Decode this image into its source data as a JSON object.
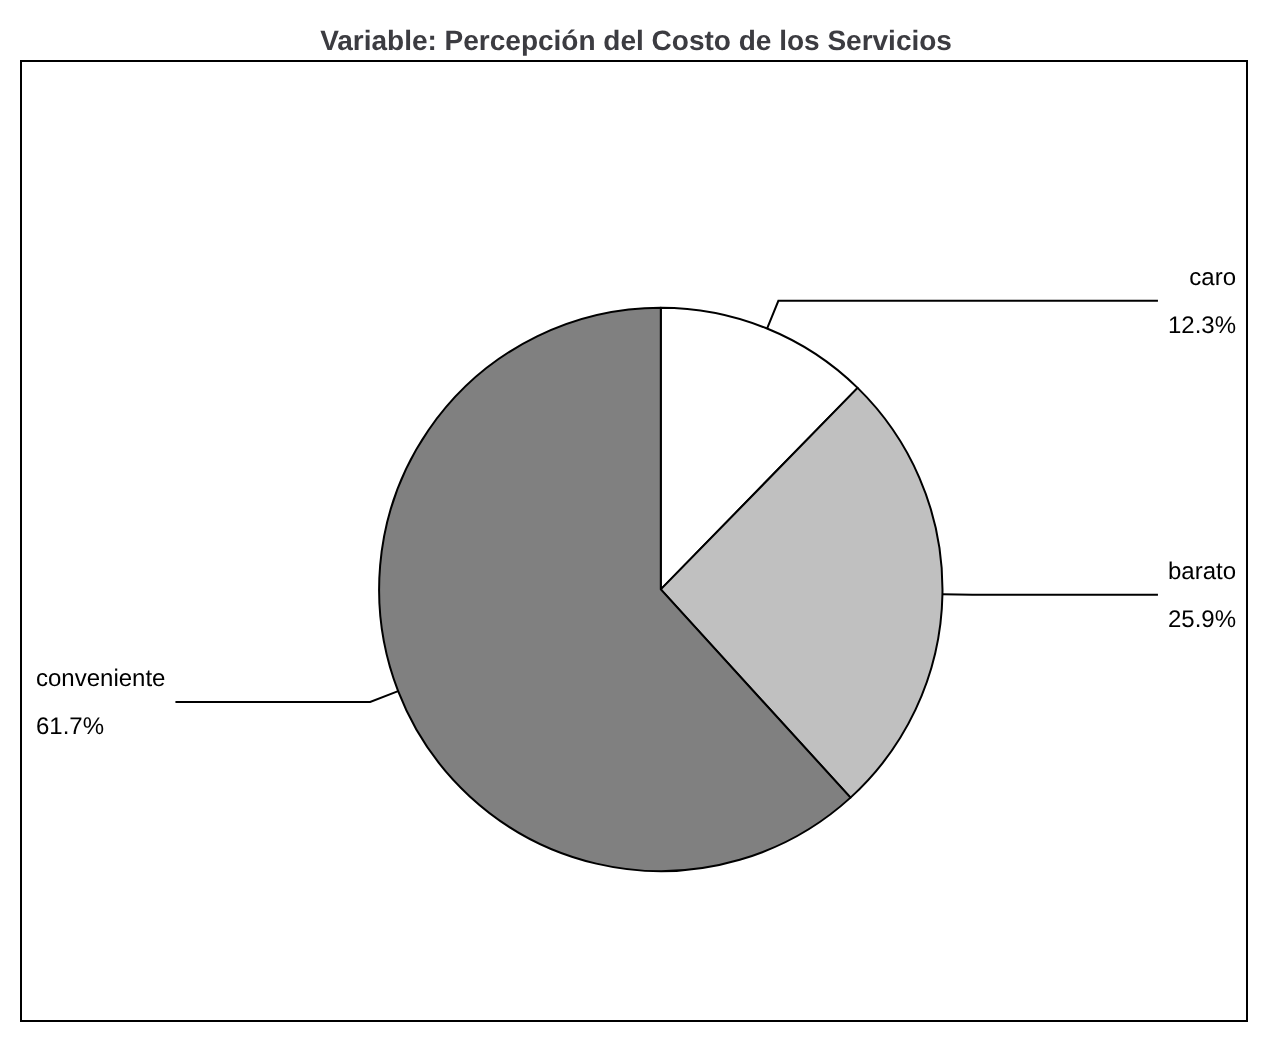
{
  "chart_data": {
    "type": "pie",
    "title": "Variable: Percepción del Costo de los Servicios",
    "categories": [
      "caro",
      "barato",
      "conveniente"
    ],
    "values": [
      12.3,
      25.9,
      61.7
    ],
    "colors": [
      "#ffffff",
      "#c0c0c0",
      "#808080"
    ],
    "value_labels": [
      "12.3%",
      "25.9%",
      "61.7%"
    ],
    "legend": false
  }
}
